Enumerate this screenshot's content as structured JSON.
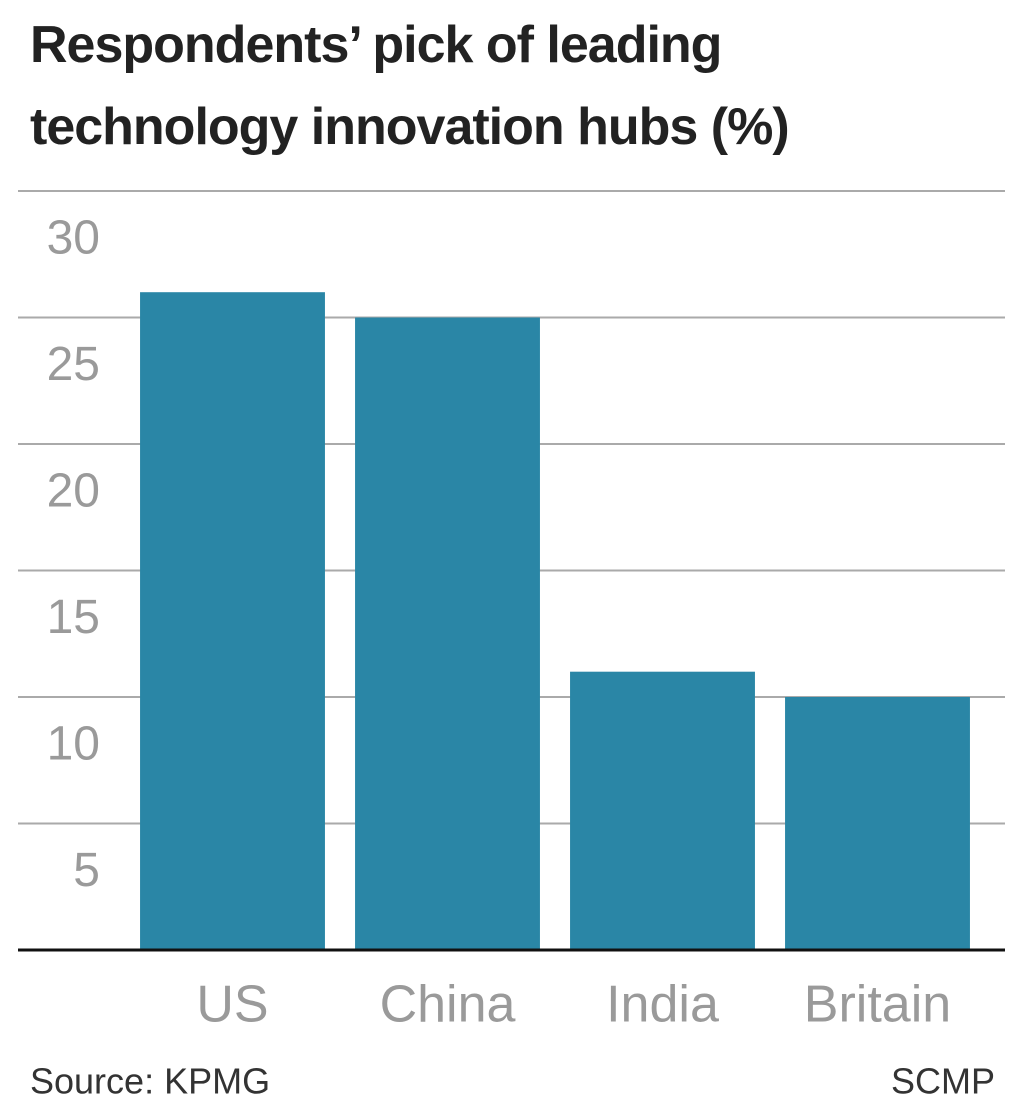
{
  "chart_data": {
    "type": "bar",
    "title": "Respondents’ pick of leading technology innovation hubs (%)",
    "categories": [
      "US",
      "China",
      "India",
      "Britain"
    ],
    "values": [
      26,
      25,
      11,
      10
    ],
    "color": "#2a86a6",
    "ylim": [
      0,
      30
    ],
    "yticks": [
      5,
      10,
      15,
      20,
      25,
      30
    ],
    "grid": true,
    "source": "Source: KPMG",
    "credit": "SCMP"
  }
}
